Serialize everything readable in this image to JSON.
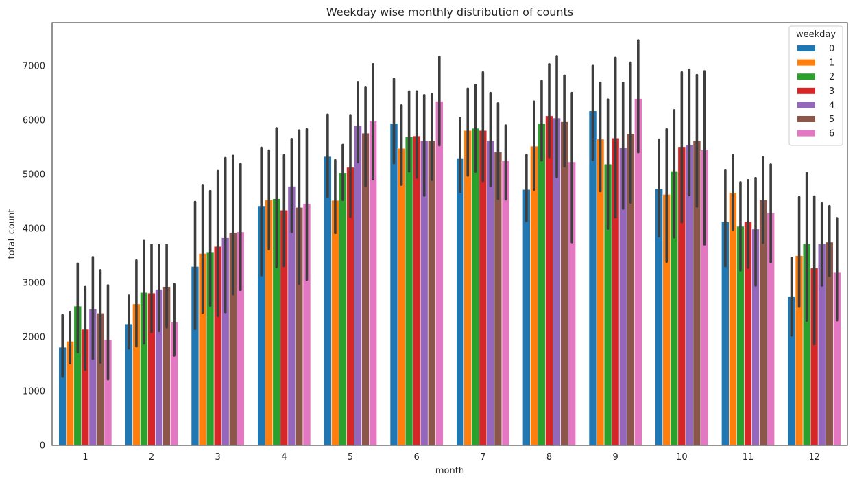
{
  "chart_data": {
    "type": "bar",
    "title": "Weekday wise monthly distribution of counts",
    "xlabel": "month",
    "ylabel": "total_count",
    "categories": [
      "1",
      "2",
      "3",
      "4",
      "5",
      "6",
      "7",
      "8",
      "9",
      "10",
      "11",
      "12"
    ],
    "ylim": [
      0,
      7800
    ],
    "yticks": [
      "0",
      "1000",
      "2000",
      "3000",
      "4000",
      "5000",
      "6000",
      "7000"
    ],
    "legend": {
      "title": "weekday",
      "position": "top-right"
    },
    "errorbar_color": "#3d3d3d",
    "grid": false,
    "series": [
      {
        "name": "0",
        "color": "#1f77b4",
        "values": [
          1810,
          2240,
          3300,
          4420,
          5330,
          5940,
          5300,
          4720,
          6170,
          4730,
          4120,
          2740
        ],
        "err_low": [
          1270,
          1790,
          2150,
          3140,
          4590,
          5210,
          4680,
          4140,
          5270,
          3860,
          3310,
          2030
        ],
        "err_high": [
          2400,
          2760,
          4490,
          5490,
          6100,
          6760,
          6040,
          5360,
          7000,
          5640,
          5070,
          3460
        ]
      },
      {
        "name": "1",
        "color": "#ff7f0e",
        "values": [
          1920,
          2610,
          3540,
          4530,
          4520,
          5480,
          5810,
          5520,
          5650,
          4630,
          4660,
          3500
        ],
        "err_low": [
          1520,
          1830,
          2450,
          3620,
          3920,
          4810,
          4980,
          4720,
          4690,
          3390,
          3980,
          2560
        ],
        "err_high": [
          2460,
          3410,
          4800,
          5440,
          5260,
          6270,
          6580,
          6340,
          6690,
          5830,
          5350,
          4580
        ]
      },
      {
        "name": "2",
        "color": "#2ca02c",
        "values": [
          2570,
          2820,
          3570,
          4550,
          5030,
          5690,
          5850,
          5940,
          5190,
          5060,
          4040,
          3720
        ],
        "err_low": [
          1720,
          1880,
          2580,
          3290,
          4530,
          5060,
          5050,
          5260,
          4000,
          3840,
          3230,
          2300
        ],
        "err_high": [
          3350,
          3770,
          4690,
          5850,
          5540,
          6530,
          6650,
          6720,
          6380,
          6180,
          4850,
          5030
        ]
      },
      {
        "name": "3",
        "color": "#d62728",
        "values": [
          2140,
          2810,
          3670,
          4340,
          5130,
          5710,
          5810,
          6080,
          5670,
          5510,
          4130,
          3270
        ],
        "err_low": [
          1400,
          2090,
          2390,
          3310,
          4220,
          4940,
          4880,
          5320,
          4210,
          4120,
          3280,
          1870
        ],
        "err_high": [
          2920,
          3700,
          5060,
          5350,
          6090,
          6530,
          6880,
          7030,
          7150,
          6880,
          4890,
          4590
        ]
      },
      {
        "name": "4",
        "color": "#9467bd",
        "values": [
          2510,
          2880,
          3830,
          4780,
          5900,
          5620,
          5620,
          6040,
          5490,
          5550,
          3990,
          3720
        ],
        "err_low": [
          1600,
          2110,
          2460,
          3940,
          5230,
          4610,
          4790,
          4950,
          4370,
          4620,
          2950,
          2950
        ],
        "err_high": [
          3470,
          3700,
          5300,
          5650,
          6700,
          6460,
          6500,
          7180,
          6690,
          6930,
          4930,
          4460
        ]
      },
      {
        "name": "5",
        "color": "#8c564b",
        "values": [
          2440,
          2930,
          3930,
          4390,
          5760,
          5620,
          5410,
          5970,
          5750,
          5620,
          4530,
          3750
        ],
        "err_low": [
          1530,
          2180,
          2790,
          2980,
          4790,
          4900,
          4550,
          5150,
          4480,
          4410,
          3740,
          3130
        ],
        "err_high": [
          3230,
          3700,
          5340,
          5810,
          6600,
          6480,
          6310,
          6820,
          7060,
          6830,
          5310,
          4410
        ]
      },
      {
        "name": "6",
        "color": "#e377c2",
        "values": [
          1950,
          2270,
          3940,
          4460,
          5980,
          6350,
          5250,
          5230,
          6400,
          5450,
          4290,
          3190
        ],
        "err_low": [
          1220,
          1660,
          2870,
          3060,
          4910,
          5540,
          4540,
          3750,
          5410,
          3710,
          3380,
          2310
        ],
        "err_high": [
          2950,
          2970,
          5190,
          5830,
          7030,
          7170,
          5900,
          6500,
          7470,
          6900,
          5180,
          4190
        ]
      }
    ]
  }
}
